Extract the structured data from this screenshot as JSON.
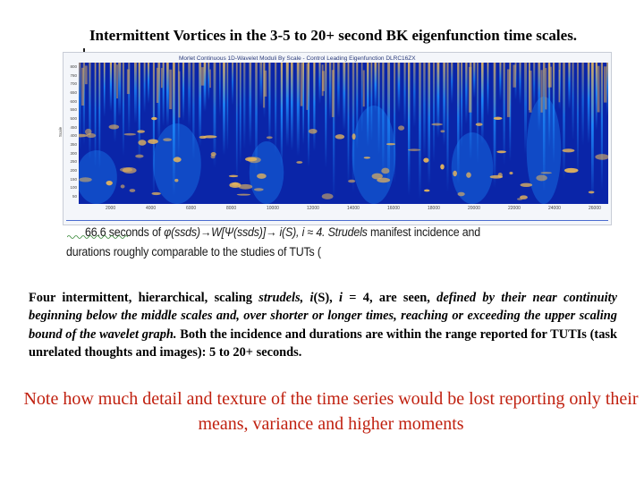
{
  "title": "Intermittent Vortices in the 3-5 to 20+ second BK eigenfunction time scales.",
  "figure": {
    "header": "Morlet Continuous 1D-Wavelet Moduli By Scale - Control Leading Eigenfunction DLRC16ZX",
    "y_axis_label": "Scale",
    "y_ticks": [
      "800",
      "780",
      "700",
      "650",
      "600",
      "550",
      "500",
      "450",
      "400",
      "350",
      "300",
      "250",
      "200",
      "150",
      "100",
      "50"
    ],
    "x_ticks": [
      "2000",
      "4000",
      "6000",
      "8000",
      "10000",
      "12000",
      "14000",
      "16000",
      "18000",
      "20000",
      "22000",
      "24000",
      "26000"
    ],
    "colors": {
      "background": "#0a25a8",
      "mid": "#1e8fff",
      "hot": "#e8b65a",
      "frame": "#c8ccd6"
    }
  },
  "caption": {
    "line1_pre": "66.6 seconds of ",
    "line1_math": "φ(ssds)→W[Ψ(ssds)]→ i(S), i ≈ 4. ",
    "line1_strudels": "Strudels",
    "line1_post": " manifest incidence and",
    "line2": "durations roughly comparable to the studies of TUTs ("
  },
  "body": {
    "t1": "Four intermittent, hierarchical, scaling ",
    "t2": "strudels, i",
    "t3": "(S), ",
    "t4": "i",
    "t5": " = 4, are seen, ",
    "t6": "defined by their near continuity beginning below the middle scales and, over shorter or longer times, reaching or exceeding the upper scaling bound of the wavelet graph.",
    "t7": " Both the incidence and durations are within the range reported for TUTIs (task unrelated thoughts and images): 5 to 20+ seconds."
  },
  "note": "Note how much detail and texture of the time series would be lost reporting only their means, variance  and higher moments"
}
